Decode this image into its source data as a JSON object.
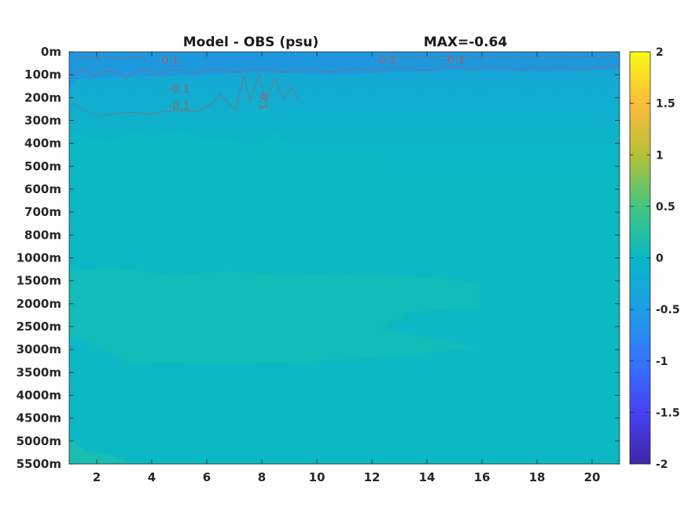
{
  "chart_data": {
    "type": "heatmap",
    "title": "Model - OBS (psu)",
    "subtitle": "MAX=-0.64",
    "y_ticks": [
      "0m",
      "100m",
      "200m",
      "300m",
      "400m",
      "500m",
      "600m",
      "700m",
      "800m",
      "1000m",
      "1500m",
      "2000m",
      "2500m",
      "3000m",
      "3500m",
      "4000m",
      "4500m",
      "5000m",
      "5500m"
    ],
    "x_ticks": [
      2,
      4,
      6,
      8,
      10,
      12,
      14,
      16,
      18,
      20
    ],
    "xlim": [
      1,
      21
    ],
    "colorbar": {
      "range": [
        -2,
        2
      ],
      "tick_values": [
        2,
        1.5,
        1,
        0.5,
        0,
        -0.5,
        -1,
        -1.5,
        -2
      ],
      "tick_labels": [
        "2",
        "1.5",
        "1",
        "0.5",
        "0",
        "-0.5",
        "-1",
        "-1.5",
        "-2"
      ],
      "colormap": "parula"
    },
    "contour_labels": [
      {
        "text": "-0.1",
        "x": 4.6,
        "depth": "0m"
      },
      {
        "text": "-0.1",
        "x": 5.0,
        "depth": "100m"
      },
      {
        "text": "-0.1",
        "x": 5.0,
        "depth": "200m"
      },
      {
        "text": "0.1",
        "x": 8.2,
        "depth": "200m"
      },
      {
        "text": "-0.1",
        "x": 12.5,
        "depth": "0m"
      },
      {
        "text": "-0.1",
        "x": 15.0,
        "depth": "0m"
      }
    ],
    "field_summary": "Values near 0 across the domain; negative anomaly (about -0.2 to -0.6) in the top 0–300m, slightly positive (about 0.05) band between 1500m and 3000m for x < 16."
  }
}
